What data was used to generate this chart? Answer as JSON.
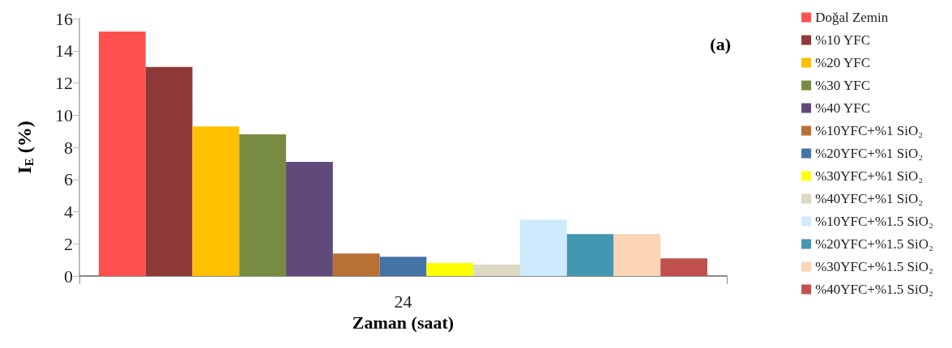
{
  "chart_data": {
    "type": "bar",
    "xlabel": "Zaman (saat)",
    "ylabel": "I$_{E}$ (%)",
    "categories": [
      "24"
    ],
    "series": [
      {
        "name": "Doğal Zemin",
        "color": "#ff5050",
        "values": [
          15.2
        ]
      },
      {
        "name": "%10 YFC",
        "color": "#8e3937",
        "values": [
          13.0
        ]
      },
      {
        "name": "%20 YFC",
        "color": "#ffc000",
        "values": [
          9.3
        ]
      },
      {
        "name": "%30 YFC",
        "color": "#778c42",
        "values": [
          8.8
        ]
      },
      {
        "name": "%40 YFC",
        "color": "#604a7b",
        "values": [
          7.1
        ]
      },
      {
        "name": "%10YFC+%1 SiO₂",
        "color": "#b97033",
        "values": [
          1.4
        ]
      },
      {
        "name": "%20YFC+%1 SiO₂",
        "color": "#4473a6",
        "values": [
          1.2
        ]
      },
      {
        "name": "%30YFC+%1 SiO₂",
        "color": "#ffff00",
        "values": [
          0.8
        ]
      },
      {
        "name": "%40YFC+%1 SiO₂",
        "color": "#ddd9c3",
        "values": [
          0.7
        ]
      },
      {
        "name": "%10YFC+%1.5 SiO₂",
        "color": "#cdebfd",
        "values": [
          3.5
        ]
      },
      {
        "name": "%20YFC+%1.5 SiO₂",
        "color": "#4397b0",
        "values": [
          2.6
        ]
      },
      {
        "name": "%30YFC+%1.5 SiO₂",
        "color": "#fbd5b5",
        "values": [
          2.6
        ]
      },
      {
        "name": "%40YFC+%1.5 SiO₂",
        "color": "#c0504d",
        "values": [
          1.1
        ]
      }
    ],
    "ylim": [
      0,
      16
    ],
    "yticks": [
      0,
      2,
      4,
      6,
      8,
      10,
      12,
      14,
      16
    ],
    "grid": false,
    "legend": "right",
    "annotations": [
      "(a)"
    ]
  }
}
